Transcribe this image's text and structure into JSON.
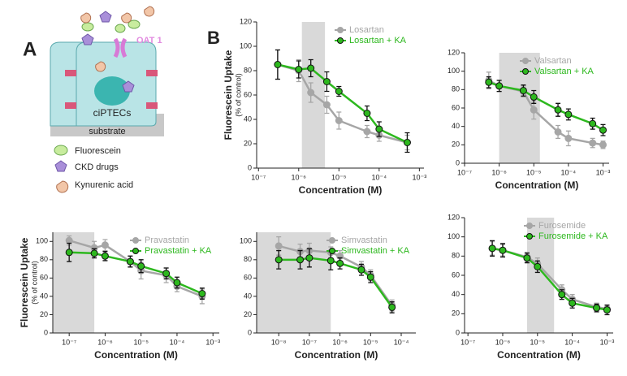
{
  "panel_labels": {
    "a": "A",
    "b": "B"
  },
  "diagram": {
    "transporter": "OAT 1",
    "cell": "ciPTECs",
    "substrate": "substrate",
    "legend": [
      "Fluorescein",
      "CKD drugs",
      "Kynurenic acid"
    ]
  },
  "chart_data": [
    {
      "type": "line",
      "x_label": "Concentration (M)",
      "y_label": "Fluorescein Uptake",
      "y_sublabel": "(% of control)",
      "log_x": true,
      "legend": "upper right",
      "shaded_range": [
        1.2e-06,
        4.5e-06
      ],
      "xlim": [
        9e-08,
        0.0013
      ],
      "ylim": [
        0,
        120
      ],
      "xticks": [
        {
          "value": 1e-07,
          "label": "10⁻⁷"
        },
        {
          "value": 1e-06,
          "label": "10⁻⁶"
        },
        {
          "value": 1e-05,
          "label": "10⁻⁵"
        },
        {
          "value": 0.0001,
          "label": "10⁻⁴"
        },
        {
          "value": 0.001,
          "label": "10⁻³"
        }
      ],
      "yticks": [
        0,
        20,
        40,
        60,
        80,
        100,
        120
      ],
      "x": [
        3e-07,
        1e-06,
        2e-06,
        5e-06,
        1e-05,
        5e-05,
        0.0001,
        0.0005
      ],
      "series": [
        {
          "name": "Losartan",
          "color": "#a6a6a6",
          "values": [
            85,
            80,
            62,
            52,
            39,
            30,
            27,
            21
          ],
          "errors": [
            12,
            9,
            8,
            7,
            7,
            5,
            5,
            6
          ]
        },
        {
          "name": "Losartan + KA",
          "color": "#2db81e",
          "values": [
            85,
            81,
            82,
            71,
            63,
            45,
            32,
            21
          ],
          "errors": [
            12,
            7,
            7,
            8,
            4,
            6,
            6,
            8
          ]
        }
      ]
    },
    {
      "type": "line",
      "x_label": "Concentration (M)",
      "log_x": true,
      "legend": "upper right",
      "shaded_range": [
        1e-06,
        1.5e-05
      ],
      "xlim": [
        1e-07,
        0.0015
      ],
      "ylim": [
        0,
        120
      ],
      "xticks": [
        {
          "value": 1e-07,
          "label": "10⁻⁷"
        },
        {
          "value": 1e-06,
          "label": "10⁻⁶"
        },
        {
          "value": 1e-05,
          "label": "10⁻⁵"
        },
        {
          "value": 0.0001,
          "label": "10⁻⁴"
        },
        {
          "value": 0.001,
          "label": "10⁻³"
        }
      ],
      "yticks": [
        0,
        20,
        40,
        60,
        80,
        100,
        120
      ],
      "x": [
        5e-07,
        1e-06,
        5e-06,
        1e-05,
        5e-05,
        0.0001,
        0.0005,
        0.001
      ],
      "series": [
        {
          "name": "Valsartan",
          "color": "#a6a6a6",
          "values": [
            90,
            84,
            78,
            58,
            34,
            27,
            22,
            20
          ],
          "errors": [
            9,
            6,
            6,
            10,
            7,
            8,
            5,
            4
          ]
        },
        {
          "name": "Valsartan + KA",
          "color": "#2db81e",
          "values": [
            88,
            84,
            79,
            72,
            58,
            53,
            43,
            36
          ],
          "errors": [
            6,
            6,
            6,
            7,
            7,
            6,
            6,
            6
          ]
        }
      ]
    },
    {
      "type": "line",
      "x_label": "Concentration (M)",
      "y_label": "Fluorescein Uptake",
      "y_sublabel": "(% of control)",
      "log_x": true,
      "legend": "upper right",
      "shaded_range": [
        3.5e-08,
        5e-07
      ],
      "xlim": [
        3.5e-08,
        0.0015
      ],
      "ylim": [
        0,
        110
      ],
      "xticks": [
        {
          "value": 1e-07,
          "label": "10⁻⁷"
        },
        {
          "value": 1e-06,
          "label": "10⁻⁶"
        },
        {
          "value": 1e-05,
          "label": "10⁻⁵"
        },
        {
          "value": 0.0001,
          "label": "10⁻⁴"
        },
        {
          "value": 0.001,
          "label": "10⁻³"
        }
      ],
      "yticks": [
        0,
        20,
        40,
        60,
        80,
        100
      ],
      "x": [
        1e-07,
        5e-07,
        1e-06,
        5e-06,
        1e-05,
        5e-05,
        0.0001,
        0.0005
      ],
      "series": [
        {
          "name": "Pravastatin",
          "color": "#a6a6a6",
          "values": [
            101,
            93,
            96,
            78,
            68,
            63,
            51,
            40
          ],
          "errors": [
            5,
            7,
            6,
            6,
            9,
            8,
            6,
            8
          ]
        },
        {
          "name": "Pravastatin + KA",
          "color": "#2db81e",
          "values": [
            88,
            87,
            84,
            78,
            73,
            65,
            55,
            43
          ],
          "errors": [
            10,
            5,
            5,
            6,
            7,
            6,
            6,
            6
          ]
        }
      ]
    },
    {
      "type": "line",
      "x_label": "Concentration (M)",
      "log_x": true,
      "legend": "upper right",
      "shaded_range": [
        1.9e-09,
        5e-07
      ],
      "xlim": [
        1.9e-09,
        0.0003
      ],
      "ylim": [
        0,
        110
      ],
      "xticks": [
        {
          "value": 1e-08,
          "label": "10⁻⁸"
        },
        {
          "value": 1e-07,
          "label": "10⁻⁷"
        },
        {
          "value": 1e-06,
          "label": "10⁻⁶"
        },
        {
          "value": 1e-05,
          "label": "10⁻⁵"
        },
        {
          "value": 0.0001,
          "label": "10⁻⁴"
        }
      ],
      "yticks": [
        0,
        20,
        40,
        60,
        80,
        100
      ],
      "x": [
        1e-08,
        5e-08,
        1e-07,
        5e-07,
        1e-06,
        5e-06,
        1e-05,
        5e-05
      ],
      "series": [
        {
          "name": "Simvastatin",
          "color": "#a6a6a6",
          "values": [
            95,
            89,
            90,
            88,
            84,
            72,
            63,
            30
          ],
          "errors": [
            10,
            8,
            8,
            6,
            6,
            6,
            6,
            6
          ]
        },
        {
          "name": "Simvastatin + KA",
          "color": "#2db81e",
          "values": [
            80,
            80,
            82,
            79,
            76,
            69,
            61,
            28
          ],
          "errors": [
            10,
            10,
            10,
            10,
            6,
            6,
            6,
            6
          ]
        }
      ]
    },
    {
      "type": "line",
      "x_label": "Concentration (M)",
      "log_x": true,
      "legend": "upper right",
      "shaded_range": [
        5e-06,
        3e-05
      ],
      "xlim": [
        8e-08,
        0.0015
      ],
      "ylim": [
        0,
        120
      ],
      "xticks": [
        {
          "value": 1e-07,
          "label": "10⁻⁷"
        },
        {
          "value": 1e-06,
          "label": "10⁻⁶"
        },
        {
          "value": 1e-05,
          "label": "10⁻⁵"
        },
        {
          "value": 0.0001,
          "label": "10⁻⁴"
        },
        {
          "value": 0.001,
          "label": "10⁻³"
        }
      ],
      "yticks": [
        0,
        20,
        40,
        60,
        80,
        100,
        120
      ],
      "x": [
        5e-07,
        1e-06,
        5e-06,
        1e-05,
        5e-05,
        0.0001,
        0.0005,
        0.001
      ],
      "series": [
        {
          "name": "Furosemide",
          "color": "#a6a6a6",
          "values": [
            88,
            86,
            79,
            72,
            45,
            35,
            27,
            25
          ],
          "errors": [
            7,
            6,
            5,
            6,
            5,
            5,
            4,
            4
          ]
        },
        {
          "name": "Furosemide + KA",
          "color": "#2db81e",
          "values": [
            88,
            86,
            78,
            69,
            40,
            31,
            26,
            24
          ],
          "errors": [
            8,
            7,
            5,
            6,
            5,
            5,
            4,
            5
          ]
        }
      ]
    }
  ]
}
